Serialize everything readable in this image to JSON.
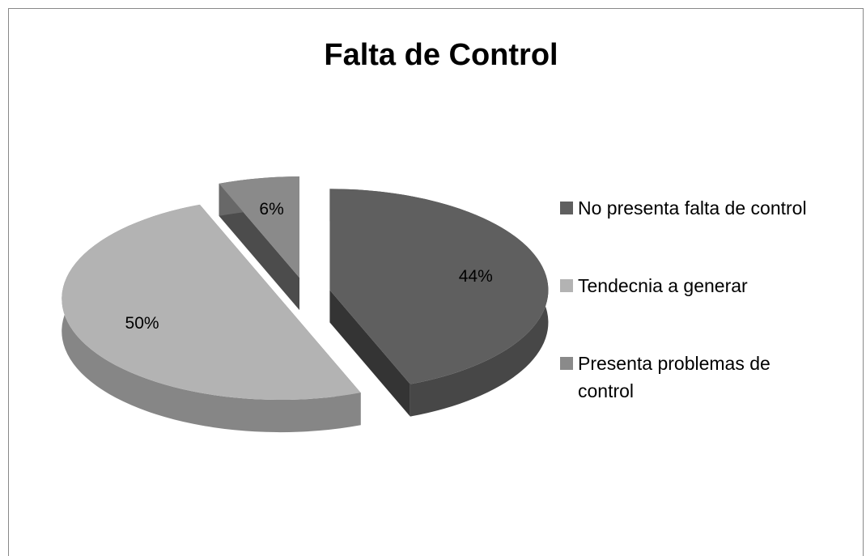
{
  "chart_data": {
    "type": "pie",
    "title": "Falta de Control",
    "categories": [
      "No presenta falta de control",
      "Tendecnia a generar",
      "Presenta problemas de control"
    ],
    "values": [
      44,
      50,
      6
    ],
    "value_labels": [
      "44%",
      "50%",
      "6%"
    ],
    "colors": [
      "#5f5f5f",
      "#b3b3b3",
      "#8a8a8a"
    ],
    "legend": "right"
  }
}
